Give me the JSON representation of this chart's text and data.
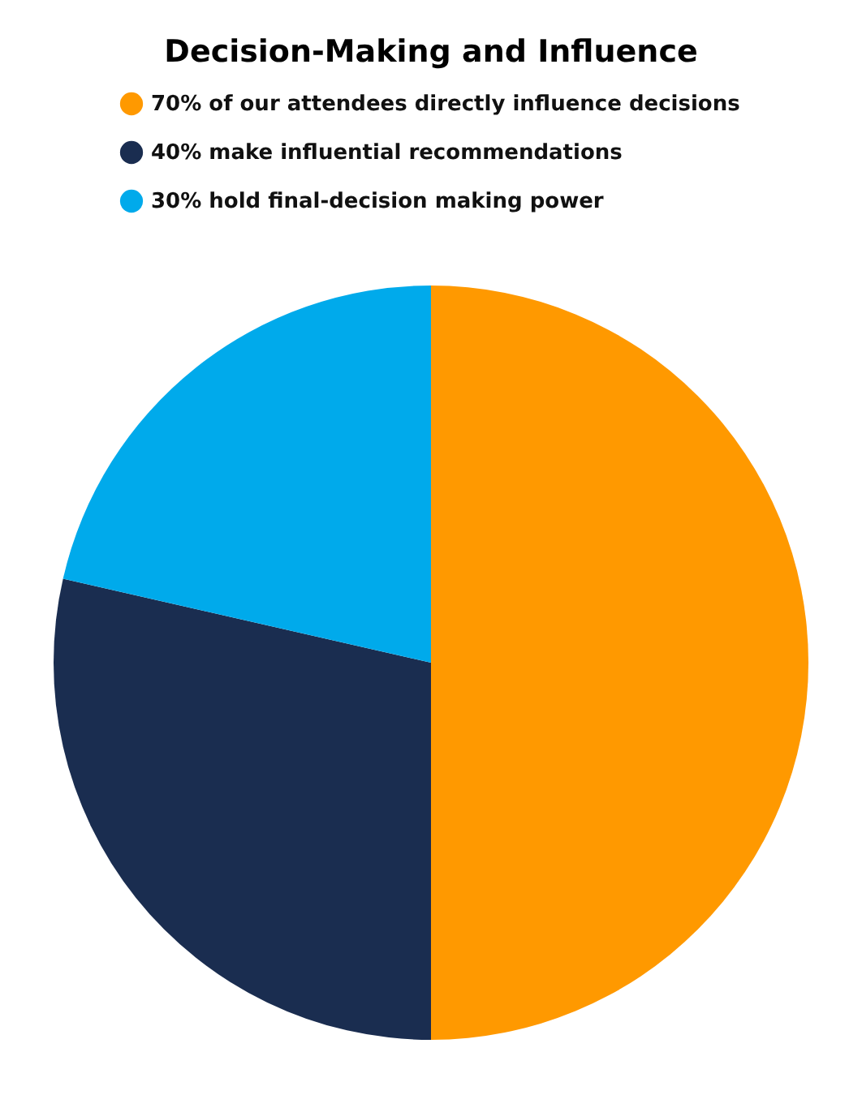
{
  "chart_data": {
    "type": "pie",
    "title": "Decision-Making and Influence",
    "categories": [
      "70% of our attendees directly influence decisions",
      "40% make influential recommendations",
      "30% hold final-decision making power"
    ],
    "values": [
      70,
      40,
      30
    ],
    "colors": [
      "#ff9900",
      "#1a2d50",
      "#00aaeb"
    ],
    "legend": "top"
  }
}
